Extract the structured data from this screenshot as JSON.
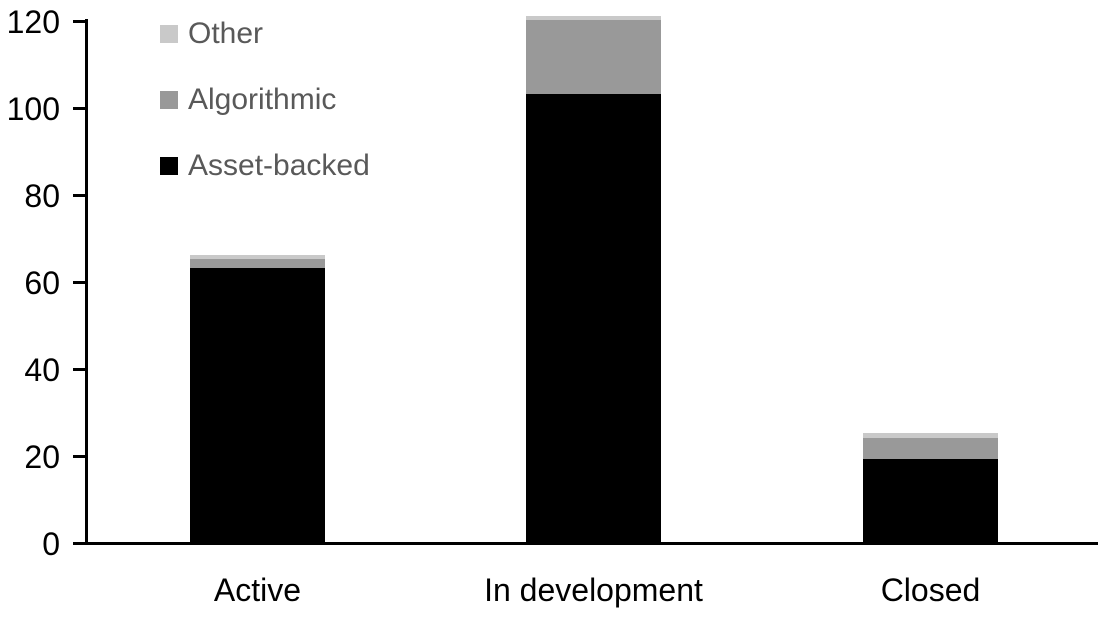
{
  "chart_data": {
    "type": "bar",
    "stacked": true,
    "orientation": "vertical",
    "title": "",
    "xlabel": "",
    "ylabel": "",
    "categories": [
      "Active",
      "In development",
      "Closed"
    ],
    "series": [
      {
        "name": "Asset-backed",
        "color": "#000000",
        "values": [
          63,
          103,
          19
        ]
      },
      {
        "name": "Algorithmic",
        "color": "#999999",
        "values": [
          2,
          17,
          5
        ]
      },
      {
        "name": "Other",
        "color": "#c9c9c9",
        "values": [
          1,
          1,
          1
        ]
      }
    ],
    "totals": [
      66,
      121,
      25
    ],
    "ylim": [
      0,
      120
    ],
    "yticks": [
      0,
      20,
      40,
      60,
      80,
      100,
      120
    ],
    "grid": false,
    "legend_position": "top-left",
    "legend_order": [
      "Other",
      "Algorithmic",
      "Asset-backed"
    ]
  },
  "legend": {
    "items": [
      {
        "label": "Other",
        "color": "#c9c9c9"
      },
      {
        "label": "Algorithmic",
        "color": "#999999"
      },
      {
        "label": "Asset-backed",
        "color": "#000000"
      }
    ],
    "text_color": "#595959"
  },
  "colors": {
    "background": "#ffffff",
    "axis": "#000000",
    "tick_label": "#000000",
    "category_label": "#000000"
  }
}
